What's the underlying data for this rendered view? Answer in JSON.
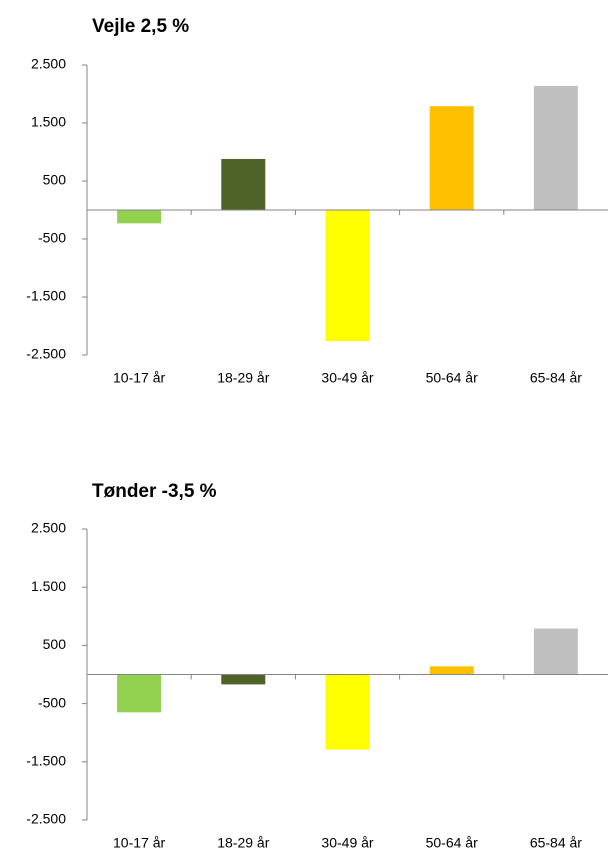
{
  "chart_data": [
    {
      "type": "bar",
      "title": "Vejle 2,5 %",
      "categories": [
        "10-17 år",
        "18-29 år",
        "30-49 år",
        "50-64 år",
        "65-84 år"
      ],
      "values": [
        -230,
        880,
        -2260,
        1790,
        2140
      ],
      "colors": [
        "#92d050",
        "#4f6228",
        "#ffff00",
        "#ffc000",
        "#bfbfbf"
      ],
      "ylim": [
        -2500,
        2500
      ],
      "yticks": [
        {
          "value": -2500,
          "label": "-2.500"
        },
        {
          "value": -1500,
          "label": "-1.500"
        },
        -500,
        500,
        {
          "value": 1500,
          "label": "1.500"
        },
        {
          "value": 2500,
          "label": "2.500"
        }
      ],
      "grid": false
    },
    {
      "type": "bar",
      "title": "Tønder -3,5 %",
      "categories": [
        "10-17 år",
        "18-29 år",
        "30-49 år",
        "50-64 år",
        "65-84 år"
      ],
      "values": [
        -650,
        -170,
        -1290,
        140,
        790
      ],
      "colors": [
        "#92d050",
        "#4f6228",
        "#ffff00",
        "#ffc000",
        "#bfbfbf"
      ],
      "ylim": [
        -2500,
        2500
      ],
      "yticks": [
        {
          "value": -2500,
          "label": "-2.500"
        },
        {
          "value": -1500,
          "label": "-1.500"
        },
        -500,
        500,
        {
          "value": 1500,
          "label": "1.500"
        },
        {
          "value": 2500,
          "label": "2.500"
        }
      ],
      "grid": false
    }
  ]
}
